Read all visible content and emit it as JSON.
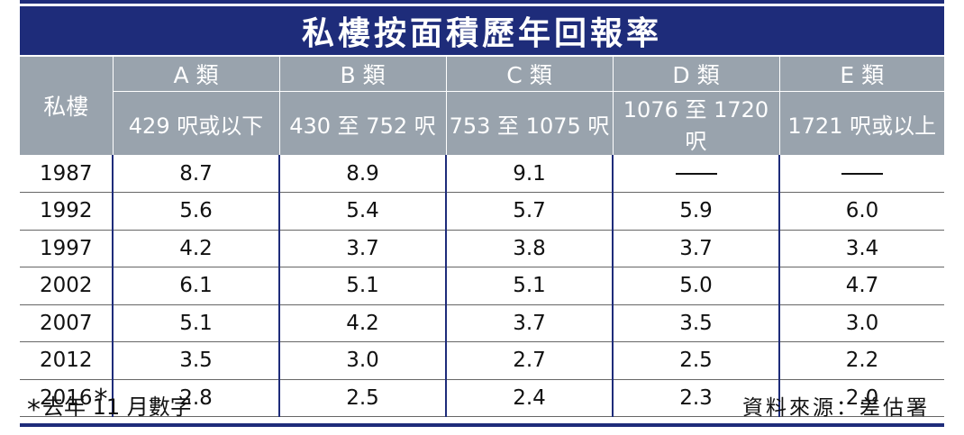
{
  "chart_data": {
    "type": "table",
    "title": "私樓按面積歷年回報率",
    "row_header": "私樓",
    "columns": [
      {
        "category": "A 類",
        "range": "429 呎或以下"
      },
      {
        "category": "B 類",
        "range": "430 至 752 呎"
      },
      {
        "category": "C 類",
        "range": "753 至 1075 呎"
      },
      {
        "category": "D 類",
        "range": "1076 至 1720 呎"
      },
      {
        "category": "E 類",
        "range": "1721 呎或以上"
      }
    ],
    "rows": [
      {
        "year": "1987",
        "values": [
          "8.7",
          "8.9",
          "9.1",
          null,
          null
        ]
      },
      {
        "year": "1992",
        "values": [
          "5.6",
          "5.4",
          "5.7",
          "5.9",
          "6.0"
        ]
      },
      {
        "year": "1997",
        "values": [
          "4.2",
          "3.7",
          "3.8",
          "3.7",
          "3.4"
        ]
      },
      {
        "year": "2002",
        "values": [
          "6.1",
          "5.1",
          "5.1",
          "5.0",
          "4.7"
        ]
      },
      {
        "year": "2007",
        "values": [
          "5.1",
          "4.2",
          "3.7",
          "3.5",
          "3.0"
        ]
      },
      {
        "year": "2012",
        "values": [
          "3.5",
          "3.0",
          "2.7",
          "2.5",
          "2.2"
        ]
      },
      {
        "year": "2016",
        "star": "*",
        "values": [
          "2.8",
          "2.5",
          "2.4",
          "2.3",
          "2.0"
        ]
      }
    ],
    "footnote_mark": "*",
    "footnote": "去年 11 月數字",
    "source": "資料來源：差估署"
  },
  "colors": {
    "title_bg": "#1e2c7a",
    "header_bg": "#99a3ad",
    "divider": "#1e2c7a"
  }
}
